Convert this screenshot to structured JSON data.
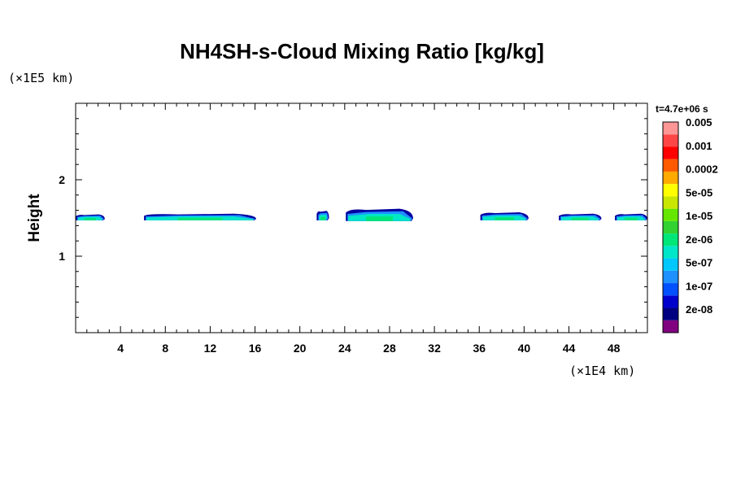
{
  "chart_data": {
    "type": "heatmap",
    "title": "NH4SH-s-Cloud Mixing Ratio [kg/kg]",
    "xlabel": "",
    "ylabel": "Height",
    "x_unit": "(×1E4 km)",
    "y_unit": "(×1E5 km)",
    "time": "t=4.7e+06 s",
    "xlim": [
      0,
      51
    ],
    "ylim": [
      0,
      3
    ],
    "x_ticks": [
      4,
      8,
      12,
      16,
      20,
      24,
      28,
      32,
      36,
      40,
      44,
      48
    ],
    "y_ticks": [
      1,
      2
    ],
    "colorbar": {
      "colors": [
        "#800080",
        "#000080",
        "#0000cd",
        "#0050ff",
        "#1e90ff",
        "#00c8ff",
        "#00e6c8",
        "#00e678",
        "#32d232",
        "#64e600",
        "#c8e600",
        "#ffff00",
        "#ffaa00",
        "#ff5a00",
        "#ff0000",
        "#ff4646",
        "#ff9696"
      ],
      "labels": [
        {
          "value": "2e-08",
          "index": 2
        },
        {
          "value": "1e-07",
          "index": 4
        },
        {
          "value": "5e-07",
          "index": 6
        },
        {
          "value": "2e-06",
          "index": 8
        },
        {
          "value": "1e-05",
          "index": 10
        },
        {
          "value": "5e-05",
          "index": 12
        },
        {
          "value": "0.0002",
          "index": 14
        },
        {
          "value": "0.001",
          "index": 16
        },
        {
          "value": "0.005",
          "index": 18
        }
      ]
    },
    "cloud_blobs": [
      {
        "x0": 0.0,
        "x1": 2.6,
        "ybase": 1.47,
        "ytop": 1.55
      },
      {
        "x0": 6.1,
        "x1": 16.1,
        "ybase": 1.47,
        "ytop": 1.56
      },
      {
        "x0": 21.5,
        "x1": 22.6,
        "ybase": 1.47,
        "ytop": 1.6
      },
      {
        "x0": 24.1,
        "x1": 30.1,
        "ybase": 1.46,
        "ytop": 1.63
      },
      {
        "x0": 36.1,
        "x1": 40.4,
        "ybase": 1.47,
        "ytop": 1.58
      },
      {
        "x0": 43.1,
        "x1": 46.9,
        "ybase": 1.47,
        "ytop": 1.56
      },
      {
        "x0": 48.1,
        "x1": 51.0,
        "ybase": 1.47,
        "ytop": 1.56
      }
    ]
  }
}
